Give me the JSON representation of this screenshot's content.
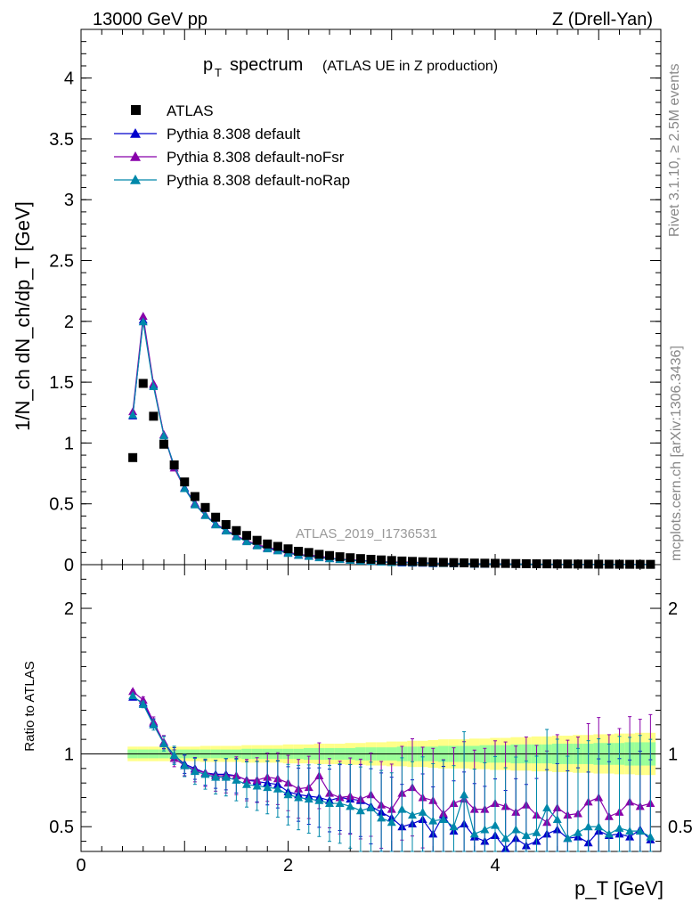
{
  "header": {
    "left": "13000 GeV pp",
    "right": "Z (Drell-Yan)"
  },
  "side_text": {
    "rivet": "Rivet 3.1.10, ≥ 2.5M events",
    "mcplots": "mcplots.cern.ch [arXiv:1306.3436]"
  },
  "main_title": {
    "p": "p",
    "sub": "T",
    "spectrum": "spectrum",
    "note": "(ATLAS UE in Z production)"
  },
  "watermark": "ATLAS_2019_I1736531",
  "ylabel_main": "1/N_ch dN_ch/dp_T [GeV]",
  "ylabel_ratio": "Ratio to ATLAS",
  "xlabel": "p_T [GeV]",
  "legend": [
    {
      "label": "ATLAS",
      "marker": "square",
      "color": "#000000"
    },
    {
      "label": "Pythia 8.308 default",
      "marker": "triangle",
      "color": "#0000cc"
    },
    {
      "label": "Pythia 8.308 default-noFsr",
      "marker": "triangle",
      "color": "#8800aa"
    },
    {
      "label": "Pythia 8.308 default-noRap",
      "marker": "triangle",
      "color": "#0088aa"
    }
  ],
  "colors": {
    "atlas": "#000000",
    "default": "#0000cc",
    "noFsr": "#8800aa",
    "noRap": "#0088aa",
    "band_inner": "#99ff99",
    "band_outer": "#ffff88"
  },
  "chart_data": {
    "type": "scatter",
    "x_range": [
      0,
      5.6
    ],
    "main_y_range": [
      0,
      4.4
    ],
    "ratio_y_range": [
      0.33,
      2.3
    ],
    "main_y_ticks": [
      "0",
      "0.5",
      "1",
      "1.5",
      "2",
      "2.5",
      "3",
      "3.5",
      "4"
    ],
    "ratio_y_ticks": [
      "0.5",
      "1",
      "2"
    ],
    "x_ticks": [
      "0",
      "2",
      "4"
    ],
    "x": [
      0.5,
      0.6,
      0.7,
      0.8,
      0.9,
      1.0,
      1.1,
      1.2,
      1.3,
      1.4,
      1.5,
      1.6,
      1.7,
      1.8,
      1.9,
      2.0,
      2.1,
      2.2,
      2.3,
      2.4,
      2.5,
      2.6,
      2.7,
      2.8,
      2.9,
      3.0,
      3.1,
      3.2,
      3.3,
      3.4,
      3.5,
      3.6,
      3.7,
      3.8,
      3.9,
      4.0,
      4.1,
      4.2,
      4.3,
      4.4,
      4.5,
      4.6,
      4.7,
      4.8,
      4.9,
      5.0,
      5.1,
      5.2,
      5.3,
      5.4,
      5.5
    ],
    "atlas": [
      0.88,
      1.49,
      1.22,
      0.99,
      0.82,
      0.68,
      0.56,
      0.47,
      0.39,
      0.33,
      0.28,
      0.24,
      0.2,
      0.17,
      0.15,
      0.13,
      0.11,
      0.1,
      0.085,
      0.075,
      0.065,
      0.057,
      0.05,
      0.044,
      0.039,
      0.034,
      0.03,
      0.027,
      0.024,
      0.021,
      0.019,
      0.017,
      0.015,
      0.013,
      0.012,
      0.011,
      0.01,
      0.009,
      0.008,
      0.007,
      0.0065,
      0.006,
      0.0055,
      0.005,
      0.0045,
      0.004,
      0.0037,
      0.0034,
      0.003,
      0.0027,
      0.0025
    ],
    "series": [
      {
        "name": "Pythia 8.308 default",
        "ratio": [
          1.39,
          1.35,
          1.21,
          1.08,
          0.99,
          0.93,
          0.9,
          0.87,
          0.86,
          0.86,
          0.85,
          0.82,
          0.81,
          0.8,
          0.79,
          0.74,
          0.72,
          0.71,
          0.7,
          0.68,
          0.7,
          0.69,
          0.68,
          0.64,
          0.6,
          0.56,
          0.5,
          0.52,
          0.55,
          0.45,
          0.58,
          0.47,
          0.52,
          0.43,
          0.4,
          0.44,
          0.35,
          0.42,
          0.37,
          0.4,
          0.45,
          0.48,
          0.42,
          0.43,
          0.39,
          0.47,
          0.44,
          0.45,
          0.43,
          0.48,
          0.41
        ]
      },
      {
        "name": "Pythia 8.308 default-noFsr",
        "ratio": [
          1.43,
          1.37,
          1.22,
          1.08,
          0.97,
          0.92,
          0.89,
          0.87,
          0.85,
          0.85,
          0.85,
          0.82,
          0.82,
          0.84,
          0.83,
          0.8,
          0.76,
          0.77,
          0.85,
          0.73,
          0.7,
          0.71,
          0.69,
          0.72,
          0.65,
          0.62,
          0.73,
          0.77,
          0.7,
          0.68,
          0.59,
          0.66,
          0.69,
          0.62,
          0.62,
          0.66,
          0.64,
          0.6,
          0.65,
          0.58,
          0.53,
          0.63,
          0.58,
          0.59,
          0.67,
          0.7,
          0.57,
          0.6,
          0.67,
          0.64,
          0.66
        ]
      },
      {
        "name": "Pythia 8.308 default-noRap",
        "ratio": [
          1.4,
          1.34,
          1.2,
          1.07,
          0.99,
          0.92,
          0.88,
          0.86,
          0.84,
          0.84,
          0.82,
          0.79,
          0.78,
          0.77,
          0.76,
          0.72,
          0.7,
          0.69,
          0.68,
          0.66,
          0.66,
          0.64,
          0.61,
          0.63,
          0.56,
          0.53,
          0.62,
          0.58,
          0.6,
          0.54,
          0.55,
          0.5,
          0.72,
          0.45,
          0.48,
          0.51,
          0.42,
          0.48,
          0.44,
          0.46,
          0.63,
          0.55,
          0.42,
          0.46,
          0.5,
          0.5,
          0.45,
          0.49,
          0.47,
          0.47,
          0.43
        ]
      }
    ],
    "band_inner_halfwidth": [
      0.03,
      0.03,
      0.03,
      0.03,
      0.03,
      0.03,
      0.03,
      0.03,
      0.03,
      0.03,
      0.03,
      0.035,
      0.035,
      0.035,
      0.035,
      0.035,
      0.035,
      0.04,
      0.04,
      0.04,
      0.04,
      0.04,
      0.045,
      0.045,
      0.045,
      0.045,
      0.05,
      0.05,
      0.05,
      0.05,
      0.055,
      0.055,
      0.055,
      0.055,
      0.06,
      0.06,
      0.06,
      0.065,
      0.065,
      0.065,
      0.065,
      0.07,
      0.07,
      0.07,
      0.07,
      0.075,
      0.075,
      0.075,
      0.08,
      0.08,
      0.08
    ],
    "band_outer_halfwidth": [
      0.05,
      0.05,
      0.05,
      0.05,
      0.05,
      0.05,
      0.05,
      0.055,
      0.055,
      0.055,
      0.055,
      0.06,
      0.06,
      0.06,
      0.06,
      0.065,
      0.065,
      0.065,
      0.07,
      0.07,
      0.07,
      0.075,
      0.075,
      0.08,
      0.08,
      0.085,
      0.085,
      0.09,
      0.09,
      0.095,
      0.1,
      0.1,
      0.1,
      0.105,
      0.105,
      0.11,
      0.11,
      0.115,
      0.115,
      0.12,
      0.12,
      0.125,
      0.125,
      0.13,
      0.13,
      0.135,
      0.135,
      0.14,
      0.14,
      0.145,
      0.145
    ]
  }
}
